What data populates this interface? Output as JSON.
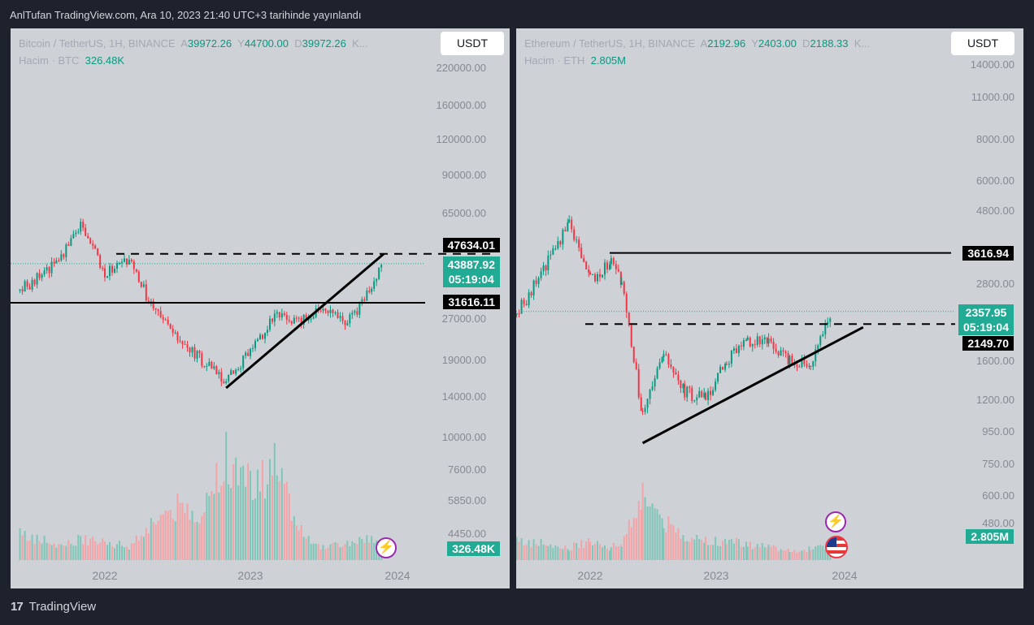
{
  "header": {
    "title": "AnlTufan TradingView.com, Ara 10, 2023 21:40 UTC+3 tarihinde yayınlandı"
  },
  "footer": {
    "brand": "TradingView",
    "logo_glyph": "17"
  },
  "colors": {
    "up": "#089981",
    "down": "#f23645",
    "vol_up": "#7fc6b8",
    "vol_down": "#f4a3a6",
    "pane_bg": "#ced1d6",
    "label_teal": "#22ab94"
  },
  "icons": {
    "event": "lightning-event-icon",
    "flag": "us-flag-icon"
  },
  "left": {
    "symbol": "Bitcoin / TetherUS, 1H, BINANCE",
    "o_label": "A",
    "o": "39972.26",
    "h_label": "Y",
    "h": "44700.00",
    "l_label": "D",
    "l": "39972.26",
    "c_label": "K...",
    "vol_label": "Hacim · BTC",
    "vol": "326.48K",
    "currency": "USDT",
    "last_price": "43887.92",
    "countdown": "05:19:04",
    "level_top": "47634.01",
    "level_mid": "31616.11",
    "vol_value": "326.48K",
    "y_ticks": [
      "220000.00",
      "160000.00",
      "120000.00",
      "90000.00",
      "65000.00",
      "27000.00",
      "19000.00",
      "14000.00",
      "10000.00",
      "7600.00",
      "5850.00",
      "4450.00"
    ],
    "x_labels": [
      "2022",
      "2023",
      "2024"
    ]
  },
  "right": {
    "symbol": "Ethereum / TetherUS, 1H, BINANCE",
    "o_label": "A",
    "o": "2192.96",
    "h_label": "Y",
    "h": "2403.00",
    "l_label": "D",
    "l": "2188.33",
    "c_label": "K...",
    "vol_label": "Hacim · ETH",
    "vol": "2.805M",
    "currency": "USDT",
    "last_price": "2357.95",
    "countdown": "05:19:04",
    "level_top": "3616.94",
    "level_mid": "2149.70",
    "vol_value": "2.805M",
    "y_ticks": [
      "14000.00",
      "11000.00",
      "8000.00",
      "6000.00",
      "4800.00",
      "2800.00",
      "1600.00",
      "1200.00",
      "950.00",
      "750.00",
      "600.00",
      "480.00"
    ],
    "x_labels": [
      "2022",
      "2023",
      "2024"
    ]
  },
  "chart_data": [
    {
      "type": "candlestick",
      "title": "Bitcoin / TetherUS, 1H, BINANCE",
      "y_scale": "log",
      "x_range": [
        "2021-05",
        "2024-03"
      ],
      "x": [
        "2021-06",
        "2021-09",
        "2021-11",
        "2022-01",
        "2022-03",
        "2022-05",
        "2022-07",
        "2022-09",
        "2022-11",
        "2023-01",
        "2023-03",
        "2023-05",
        "2023-07",
        "2023-09",
        "2023-11",
        "2023-12"
      ],
      "close": [
        35000,
        44000,
        62000,
        41000,
        45000,
        30000,
        23000,
        19500,
        16500,
        21000,
        28000,
        27000,
        30500,
        26500,
        36000,
        43887.92
      ],
      "volume_relative": [
        0.25,
        0.15,
        0.2,
        0.18,
        0.12,
        0.35,
        0.5,
        0.4,
        1.0,
        0.7,
        0.9,
        0.3,
        0.12,
        0.15,
        0.2,
        0.12
      ],
      "horizontal_levels": [
        47634.01,
        31616.11
      ],
      "trendline": [
        [
          "2022-11",
          15500
        ],
        [
          "2023-12",
          47634.01
        ]
      ]
    },
    {
      "type": "candlestick",
      "title": "Ethereum / TetherUS, 1H, BINANCE",
      "y_scale": "log",
      "x_range": [
        "2021-05",
        "2024-09"
      ],
      "x": [
        "2021-06",
        "2021-09",
        "2021-11",
        "2022-01",
        "2022-03",
        "2022-04",
        "2022-06",
        "2022-08",
        "2022-10",
        "2022-12",
        "2023-02",
        "2023-04",
        "2023-06",
        "2023-08",
        "2023-10",
        "2023-12"
      ],
      "close": [
        2300,
        3400,
        4600,
        3000,
        3400,
        2900,
        1100,
        1700,
        1300,
        1250,
        1650,
        1900,
        1850,
        1650,
        1600,
        2357.95
      ],
      "volume_relative": [
        0.3,
        0.25,
        0.2,
        0.3,
        0.2,
        0.25,
        1.0,
        0.6,
        0.35,
        0.3,
        0.3,
        0.25,
        0.2,
        0.15,
        0.18,
        0.2
      ],
      "horizontal_levels": [
        3616.94,
        2149.7
      ],
      "trendline": [
        [
          "2022-06",
          900
        ],
        [
          "2024-03",
          2100
        ]
      ]
    }
  ]
}
